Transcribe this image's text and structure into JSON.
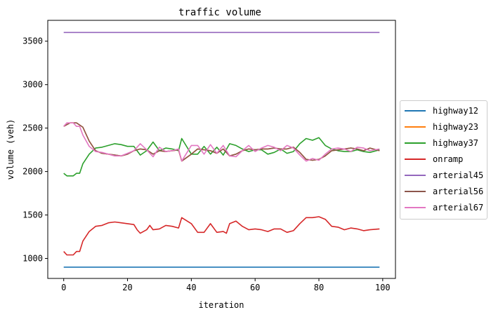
{
  "chart_data": {
    "type": "line",
    "title": "traffic volume",
    "xlabel": "iteration",
    "ylabel": "volume (veh)",
    "xlim": [
      -5,
      104
    ],
    "ylim": [
      770,
      3740
    ],
    "xticks": [
      0,
      20,
      40,
      60,
      80,
      100
    ],
    "yticks": [
      1000,
      1500,
      2000,
      2500,
      3000,
      3500
    ],
    "grid": false,
    "legend_position": "right, outside plot",
    "series": [
      {
        "name": "highway12",
        "color": "#1f77b4",
        "points": [
          [
            0,
            900
          ],
          [
            99,
            900
          ]
        ]
      },
      {
        "name": "highway23",
        "color": "#ff7f0e",
        "points": [
          [
            0,
            2520
          ],
          [
            2,
            2560
          ],
          [
            4,
            2560
          ],
          [
            6,
            2510
          ],
          [
            8,
            2350
          ],
          [
            10,
            2240
          ],
          [
            12,
            2210
          ],
          [
            14,
            2200
          ],
          [
            16,
            2190
          ],
          [
            18,
            2180
          ],
          [
            20,
            2200
          ],
          [
            22,
            2240
          ],
          [
            24,
            2260
          ],
          [
            26,
            2250
          ],
          [
            28,
            2200
          ],
          [
            30,
            2240
          ],
          [
            32,
            2230
          ],
          [
            34,
            2240
          ],
          [
            36,
            2250
          ],
          [
            37,
            2120
          ],
          [
            40,
            2200
          ],
          [
            42,
            2260
          ],
          [
            44,
            2250
          ],
          [
            46,
            2240
          ],
          [
            48,
            2210
          ],
          [
            50,
            2260
          ],
          [
            52,
            2180
          ],
          [
            54,
            2200
          ],
          [
            56,
            2240
          ],
          [
            58,
            2260
          ],
          [
            60,
            2250
          ],
          [
            62,
            2260
          ],
          [
            64,
            2260
          ],
          [
            66,
            2270
          ],
          [
            68,
            2260
          ],
          [
            70,
            2260
          ],
          [
            72,
            2280
          ],
          [
            74,
            2220
          ],
          [
            76,
            2140
          ],
          [
            78,
            2130
          ],
          [
            80,
            2140
          ],
          [
            82,
            2180
          ],
          [
            84,
            2240
          ],
          [
            86,
            2250
          ],
          [
            88,
            2260
          ],
          [
            90,
            2270
          ],
          [
            92,
            2260
          ],
          [
            94,
            2240
          ],
          [
            96,
            2270
          ],
          [
            99,
            2240
          ]
        ]
      },
      {
        "name": "highway37",
        "color": "#2ca02c",
        "points": [
          [
            0,
            1980
          ],
          [
            1,
            1950
          ],
          [
            3,
            1950
          ],
          [
            4,
            1980
          ],
          [
            5,
            1980
          ],
          [
            6,
            2090
          ],
          [
            8,
            2200
          ],
          [
            10,
            2270
          ],
          [
            12,
            2280
          ],
          [
            14,
            2300
          ],
          [
            16,
            2320
          ],
          [
            18,
            2310
          ],
          [
            20,
            2290
          ],
          [
            22,
            2290
          ],
          [
            24,
            2190
          ],
          [
            26,
            2240
          ],
          [
            28,
            2340
          ],
          [
            30,
            2240
          ],
          [
            32,
            2270
          ],
          [
            34,
            2260
          ],
          [
            36,
            2240
          ],
          [
            37,
            2380
          ],
          [
            40,
            2200
          ],
          [
            42,
            2200
          ],
          [
            44,
            2290
          ],
          [
            46,
            2200
          ],
          [
            48,
            2280
          ],
          [
            50,
            2190
          ],
          [
            52,
            2320
          ],
          [
            54,
            2300
          ],
          [
            56,
            2260
          ],
          [
            58,
            2230
          ],
          [
            60,
            2250
          ],
          [
            62,
            2250
          ],
          [
            64,
            2200
          ],
          [
            66,
            2220
          ],
          [
            68,
            2260
          ],
          [
            70,
            2210
          ],
          [
            72,
            2230
          ],
          [
            74,
            2320
          ],
          [
            76,
            2380
          ],
          [
            78,
            2360
          ],
          [
            80,
            2390
          ],
          [
            82,
            2300
          ],
          [
            84,
            2260
          ],
          [
            86,
            2240
          ],
          [
            88,
            2230
          ],
          [
            90,
            2230
          ],
          [
            92,
            2250
          ],
          [
            94,
            2230
          ],
          [
            96,
            2220
          ],
          [
            99,
            2250
          ]
        ]
      },
      {
        "name": "onramp",
        "color": "#d62728",
        "points": [
          [
            0,
            1080
          ],
          [
            1,
            1040
          ],
          [
            3,
            1040
          ],
          [
            4,
            1080
          ],
          [
            5,
            1080
          ],
          [
            6,
            1200
          ],
          [
            8,
            1310
          ],
          [
            10,
            1370
          ],
          [
            12,
            1380
          ],
          [
            14,
            1410
          ],
          [
            16,
            1420
          ],
          [
            18,
            1410
          ],
          [
            20,
            1400
          ],
          [
            22,
            1390
          ],
          [
            23,
            1330
          ],
          [
            24,
            1290
          ],
          [
            26,
            1330
          ],
          [
            27,
            1380
          ],
          [
            28,
            1330
          ],
          [
            30,
            1340
          ],
          [
            32,
            1380
          ],
          [
            34,
            1370
          ],
          [
            36,
            1350
          ],
          [
            37,
            1470
          ],
          [
            40,
            1400
          ],
          [
            42,
            1300
          ],
          [
            44,
            1300
          ],
          [
            46,
            1400
          ],
          [
            48,
            1300
          ],
          [
            50,
            1310
          ],
          [
            51,
            1290
          ],
          [
            52,
            1400
          ],
          [
            54,
            1430
          ],
          [
            56,
            1370
          ],
          [
            58,
            1330
          ],
          [
            60,
            1340
          ],
          [
            62,
            1330
          ],
          [
            64,
            1310
          ],
          [
            66,
            1340
          ],
          [
            68,
            1340
          ],
          [
            70,
            1300
          ],
          [
            72,
            1320
          ],
          [
            74,
            1400
          ],
          [
            76,
            1470
          ],
          [
            78,
            1470
          ],
          [
            80,
            1480
          ],
          [
            82,
            1450
          ],
          [
            84,
            1370
          ],
          [
            86,
            1360
          ],
          [
            88,
            1330
          ],
          [
            90,
            1350
          ],
          [
            92,
            1340
          ],
          [
            94,
            1320
          ],
          [
            96,
            1330
          ],
          [
            99,
            1340
          ]
        ]
      },
      {
        "name": "arterial45",
        "color": "#9467bd",
        "points": [
          [
            0,
            3600
          ],
          [
            99,
            3600
          ]
        ]
      },
      {
        "name": "arterial56",
        "color": "#8c564b",
        "points": [
          [
            0,
            2520
          ],
          [
            2,
            2560
          ],
          [
            4,
            2560
          ],
          [
            6,
            2510
          ],
          [
            8,
            2350
          ],
          [
            10,
            2240
          ],
          [
            12,
            2210
          ],
          [
            14,
            2200
          ],
          [
            16,
            2190
          ],
          [
            18,
            2180
          ],
          [
            20,
            2200
          ],
          [
            22,
            2240
          ],
          [
            24,
            2260
          ],
          [
            26,
            2250
          ],
          [
            28,
            2200
          ],
          [
            30,
            2240
          ],
          [
            32,
            2230
          ],
          [
            34,
            2240
          ],
          [
            36,
            2250
          ],
          [
            37,
            2120
          ],
          [
            40,
            2200
          ],
          [
            42,
            2260
          ],
          [
            44,
            2250
          ],
          [
            46,
            2240
          ],
          [
            48,
            2210
          ],
          [
            50,
            2260
          ],
          [
            52,
            2180
          ],
          [
            54,
            2200
          ],
          [
            56,
            2240
          ],
          [
            58,
            2260
          ],
          [
            60,
            2250
          ],
          [
            62,
            2260
          ],
          [
            64,
            2260
          ],
          [
            66,
            2270
          ],
          [
            68,
            2260
          ],
          [
            70,
            2260
          ],
          [
            72,
            2280
          ],
          [
            74,
            2220
          ],
          [
            76,
            2140
          ],
          [
            78,
            2130
          ],
          [
            80,
            2140
          ],
          [
            82,
            2180
          ],
          [
            84,
            2240
          ],
          [
            86,
            2250
          ],
          [
            88,
            2260
          ],
          [
            90,
            2270
          ],
          [
            92,
            2260
          ],
          [
            94,
            2240
          ],
          [
            96,
            2270
          ],
          [
            99,
            2240
          ]
        ]
      },
      {
        "name": "arterial67",
        "color": "#e377c2",
        "points": [
          [
            0,
            2520
          ],
          [
            1,
            2560
          ],
          [
            3,
            2560
          ],
          [
            4,
            2520
          ],
          [
            5,
            2520
          ],
          [
            6,
            2420
          ],
          [
            8,
            2290
          ],
          [
            10,
            2230
          ],
          [
            12,
            2220
          ],
          [
            14,
            2200
          ],
          [
            16,
            2180
          ],
          [
            18,
            2180
          ],
          [
            20,
            2210
          ],
          [
            22,
            2240
          ],
          [
            24,
            2320
          ],
          [
            26,
            2250
          ],
          [
            28,
            2170
          ],
          [
            30,
            2280
          ],
          [
            32,
            2230
          ],
          [
            34,
            2240
          ],
          [
            36,
            2260
          ],
          [
            37,
            2120
          ],
          [
            40,
            2300
          ],
          [
            42,
            2300
          ],
          [
            44,
            2200
          ],
          [
            46,
            2310
          ],
          [
            48,
            2210
          ],
          [
            50,
            2300
          ],
          [
            52,
            2180
          ],
          [
            54,
            2170
          ],
          [
            56,
            2240
          ],
          [
            58,
            2300
          ],
          [
            60,
            2230
          ],
          [
            62,
            2270
          ],
          [
            64,
            2300
          ],
          [
            66,
            2280
          ],
          [
            68,
            2240
          ],
          [
            70,
            2300
          ],
          [
            72,
            2270
          ],
          [
            74,
            2190
          ],
          [
            76,
            2120
          ],
          [
            78,
            2150
          ],
          [
            80,
            2130
          ],
          [
            82,
            2200
          ],
          [
            84,
            2260
          ],
          [
            86,
            2270
          ],
          [
            88,
            2260
          ],
          [
            90,
            2230
          ],
          [
            92,
            2280
          ],
          [
            94,
            2270
          ],
          [
            96,
            2240
          ],
          [
            99,
            2260
          ]
        ]
      }
    ]
  }
}
